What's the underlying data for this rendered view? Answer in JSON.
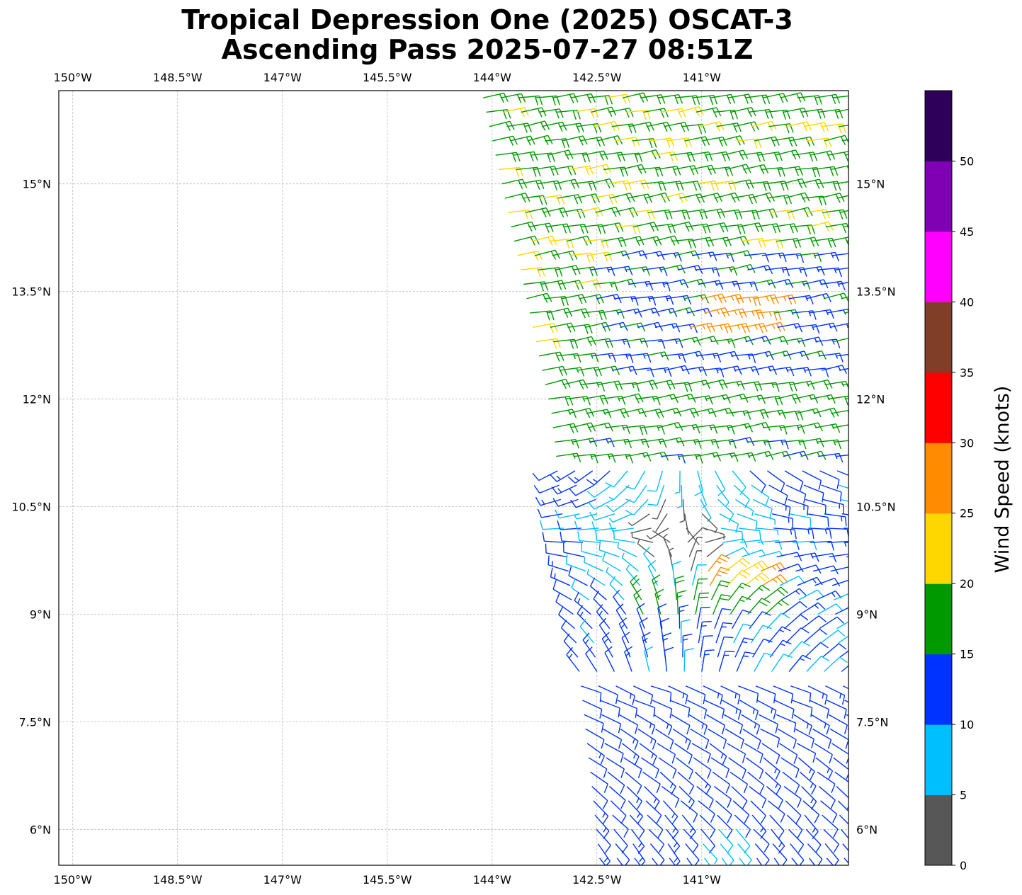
{
  "title": {
    "line1": "Tropical Depression One (2025) OSCAT-3",
    "line2": "Ascending Pass 2025-07-27 08:51Z"
  },
  "map": {
    "lon_range": [
      -150.2,
      -138.9
    ],
    "lat_range": [
      5.5,
      16.3
    ],
    "gridlines": true,
    "lon_ticks": [
      {
        "value": -150.0,
        "label": "150°W"
      },
      {
        "value": -148.5,
        "label": "148.5°W"
      },
      {
        "value": -147.0,
        "label": "147°W"
      },
      {
        "value": -145.5,
        "label": "145.5°W"
      },
      {
        "value": -144.0,
        "label": "144°W"
      },
      {
        "value": -142.5,
        "label": "142.5°W"
      },
      {
        "value": -141.0,
        "label": "141°W"
      }
    ],
    "lat_ticks": [
      {
        "value": 15.0,
        "label": "15°N"
      },
      {
        "value": 13.5,
        "label": "13.5°N"
      },
      {
        "value": 12.0,
        "label": "12°N"
      },
      {
        "value": 10.5,
        "label": "10.5°N"
      },
      {
        "value": 9.0,
        "label": "9°N"
      },
      {
        "value": 7.5,
        "label": "7.5°N"
      },
      {
        "value": 6.0,
        "label": "6°N"
      }
    ],
    "swath_left_edge": [
      [
        -144.2,
        16.3
      ],
      [
        -143.2,
        11.8
      ],
      [
        -142.5,
        5.5
      ]
    ],
    "swath_right_edge_lon": -138.9,
    "center_lon": -141.3,
    "center_lat": 10.1
  },
  "colorbar": {
    "label": "Wind Speed (knots)",
    "bins": [
      {
        "min": 0,
        "max": 5,
        "color": "#575757"
      },
      {
        "min": 5,
        "max": 10,
        "color": "#00bfff"
      },
      {
        "min": 10,
        "max": 15,
        "color": "#0033ff"
      },
      {
        "min": 15,
        "max": 20,
        "color": "#009900"
      },
      {
        "min": 20,
        "max": 25,
        "color": "#ffd700"
      },
      {
        "min": 25,
        "max": 30,
        "color": "#ff8c00"
      },
      {
        "min": 30,
        "max": 35,
        "color": "#ff0000"
      },
      {
        "min": 35,
        "max": 40,
        "color": "#803d28"
      },
      {
        "min": 40,
        "max": 45,
        "color": "#ff00ff"
      },
      {
        "min": 45,
        "max": 50,
        "color": "#8000b3"
      },
      {
        "min": 50,
        "max": 55,
        "color": "#2e005a"
      }
    ],
    "ticks": [
      {
        "value": 0,
        "label": "0"
      },
      {
        "value": 5,
        "label": "5"
      },
      {
        "value": 10,
        "label": "10"
      },
      {
        "value": 15,
        "label": "15"
      },
      {
        "value": 20,
        "label": "20"
      },
      {
        "value": 25,
        "label": "25"
      },
      {
        "value": 30,
        "label": "30"
      },
      {
        "value": 35,
        "label": "35"
      },
      {
        "value": 40,
        "label": "40"
      },
      {
        "value": 45,
        "label": "45"
      },
      {
        "value": 50,
        "label": "50"
      }
    ]
  }
}
